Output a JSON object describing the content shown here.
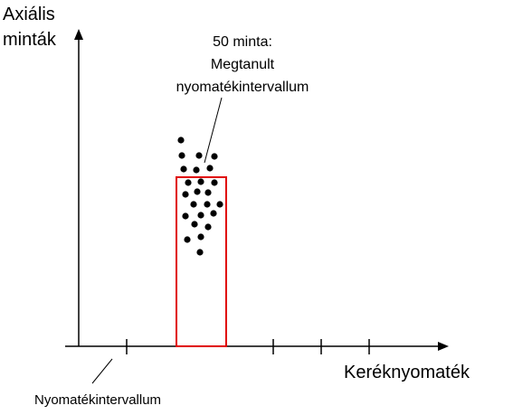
{
  "axes": {
    "y_label": [
      "Axiális",
      "minták"
    ],
    "x_label": "Keréknyomaték"
  },
  "annotation": {
    "lines": [
      "50 minta:",
      "Megtanult",
      "nyomatékintervallum"
    ]
  },
  "interval_label": "Nyomatékintervallum"
}
